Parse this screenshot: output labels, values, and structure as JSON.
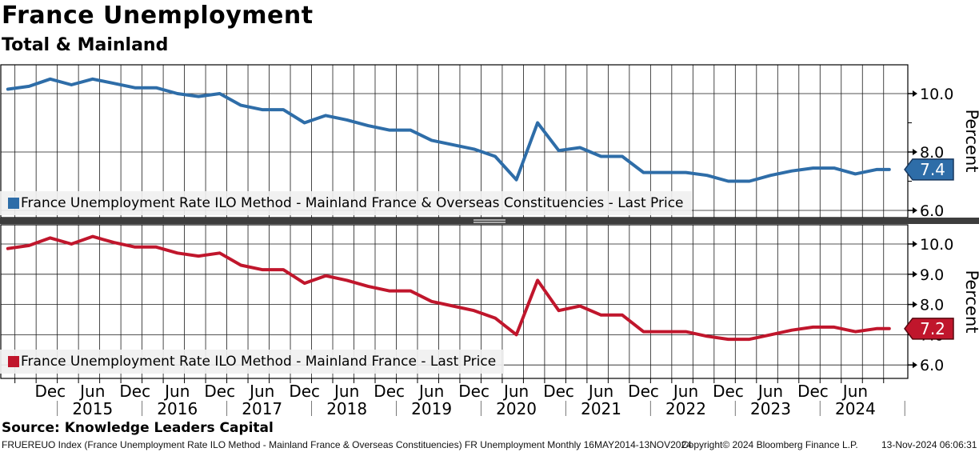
{
  "header": {
    "title": "France Unemployment",
    "subtitle": "Total & Mainland"
  },
  "y_axis_title": "Percent",
  "colors": {
    "total_line": "#2E6DA8",
    "total_marker_border": "#17375E",
    "mainland_line": "#C0162C",
    "mainland_marker_border": "#55080F",
    "grid": "#1a1a1a",
    "legend_bg": "#F0F0F0",
    "splitter": "#3D3D3D"
  },
  "chart_data": [
    {
      "type": "line",
      "panel": "top",
      "series": [
        {
          "name": "France Unemployment Rate ILO Method - Mainland France & Overseas Constituencies - Last Price",
          "color": "#2E6DA8",
          "values": [
            10.15,
            10.25,
            10.5,
            10.3,
            10.5,
            10.35,
            10.2,
            10.2,
            10.0,
            9.9,
            10.0,
            9.6,
            9.45,
            9.45,
            9.0,
            9.25,
            9.1,
            8.9,
            8.75,
            8.75,
            8.4,
            8.25,
            8.1,
            7.85,
            7.05,
            9.0,
            8.05,
            8.15,
            7.85,
            7.85,
            7.3,
            7.3,
            7.3,
            7.2,
            7.0,
            7.0,
            7.2,
            7.35,
            7.45,
            7.45,
            7.25,
            7.4
          ]
        }
      ],
      "x": [
        "2014-Q2",
        "2014-Q3",
        "2014-Q4",
        "2015-Q1",
        "2015-Q2",
        "2015-Q3",
        "2015-Q4",
        "2016-Q1",
        "2016-Q2",
        "2016-Q3",
        "2016-Q4",
        "2017-Q1",
        "2017-Q2",
        "2017-Q3",
        "2017-Q4",
        "2018-Q1",
        "2018-Q2",
        "2018-Q3",
        "2018-Q4",
        "2019-Q1",
        "2019-Q2",
        "2019-Q3",
        "2019-Q4",
        "2020-Q1",
        "2020-Q2",
        "2020-Q3",
        "2020-Q4",
        "2021-Q1",
        "2021-Q2",
        "2021-Q3",
        "2021-Q4",
        "2022-Q1",
        "2022-Q2",
        "2022-Q3",
        "2022-Q4",
        "2023-Q1",
        "2023-Q2",
        "2023-Q3",
        "2023-Q4",
        "2024-Q1",
        "2024-Q2",
        "2024-Q3"
      ],
      "last_price": "7.4",
      "ylabel": "Percent",
      "yticks_major": [
        "10.0",
        "8.0",
        "6.0"
      ],
      "yticks_minor": [
        9.0,
        7.0
      ],
      "ylim": [
        5.7,
        11.0
      ],
      "grid": "quarterly vertical + horizontal at labeled ticks",
      "legend_position": "bottom-left inside plot"
    },
    {
      "type": "line",
      "panel": "bottom",
      "series": [
        {
          "name": "France Unemployment Rate ILO Method - Mainland France - Last Price",
          "color": "#C0162C",
          "values": [
            9.85,
            9.95,
            10.2,
            10.0,
            10.25,
            10.05,
            9.9,
            9.9,
            9.7,
            9.6,
            9.7,
            9.3,
            9.15,
            9.15,
            8.7,
            8.95,
            8.8,
            8.6,
            8.45,
            8.45,
            8.1,
            7.95,
            7.8,
            7.55,
            7.0,
            8.8,
            7.8,
            7.95,
            7.65,
            7.65,
            7.1,
            7.1,
            7.1,
            6.95,
            6.85,
            6.85,
            7.0,
            7.15,
            7.25,
            7.25,
            7.1,
            7.2
          ]
        }
      ],
      "x": [
        "2014-Q2",
        "2014-Q3",
        "2014-Q4",
        "2015-Q1",
        "2015-Q2",
        "2015-Q3",
        "2015-Q4",
        "2016-Q1",
        "2016-Q2",
        "2016-Q3",
        "2016-Q4",
        "2017-Q1",
        "2017-Q2",
        "2017-Q3",
        "2017-Q4",
        "2018-Q1",
        "2018-Q2",
        "2018-Q3",
        "2018-Q4",
        "2019-Q1",
        "2019-Q2",
        "2019-Q3",
        "2019-Q4",
        "2020-Q1",
        "2020-Q2",
        "2020-Q3",
        "2020-Q4",
        "2021-Q1",
        "2021-Q2",
        "2021-Q3",
        "2021-Q4",
        "2022-Q1",
        "2022-Q2",
        "2022-Q3",
        "2022-Q4",
        "2023-Q1",
        "2023-Q2",
        "2023-Q3",
        "2023-Q4",
        "2024-Q1",
        "2024-Q2",
        "2024-Q3"
      ],
      "last_price": "7.2",
      "ylabel": "Percent",
      "yticks_major": [
        "10.0",
        "9.0",
        "8.0",
        "7.0",
        "6.0"
      ],
      "yticks_minor": [],
      "ylim": [
        5.6,
        10.7
      ],
      "grid": "quarterly vertical + horizontal at labeled ticks",
      "legend_position": "bottom-left inside plot"
    }
  ],
  "x_axis": {
    "month_labels": [
      "Dec",
      "Jun",
      "Dec",
      "Jun",
      "Dec",
      "Jun",
      "Dec",
      "Jun",
      "Dec",
      "Jun",
      "Dec",
      "Jun",
      "Dec",
      "Jun",
      "Dec",
      "Jun",
      "Dec",
      "Jun",
      "Dec",
      "Jun"
    ],
    "year_labels": [
      "2015",
      "2016",
      "2017",
      "2018",
      "2019",
      "2020",
      "2021",
      "2022",
      "2023",
      "2024"
    ]
  },
  "markers": {
    "top": {
      "value": "7.4"
    },
    "bottom": {
      "value": "7.2"
    }
  },
  "footer": {
    "source": "Source: Knowledge Leaders Capital",
    "description": "FRUEREUO Index (France Unemployment Rate ILO Method - Mainland France & Overseas Constituencies) FR Unemployment  Monthly 16MAY2014-13NOV2024",
    "copyright": "Copyright© 2024 Bloomberg Finance L.P.",
    "datetime": "13-Nov-2024 06:06:31"
  }
}
